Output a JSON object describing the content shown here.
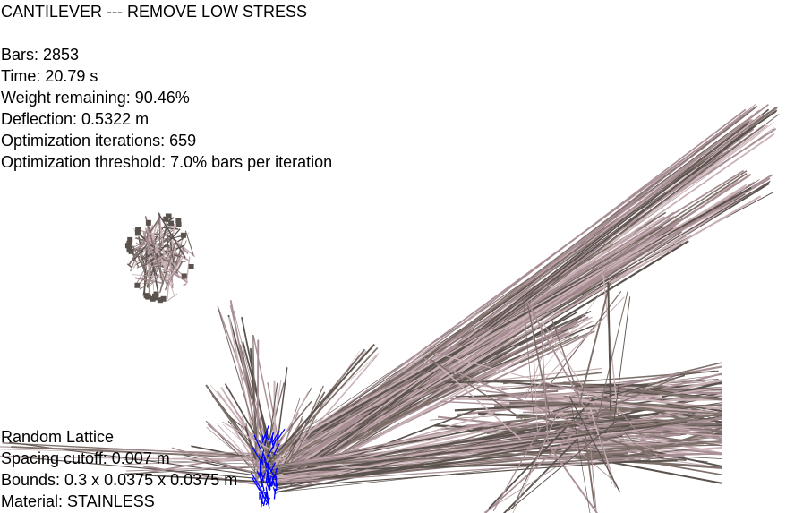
{
  "title": "CANTILEVER --- REMOVE LOW STRESS",
  "stats": {
    "bars": "Bars: 2853",
    "time": "Time: 20.79 s",
    "weight": "Weight remaining: 90.46%",
    "deflection": "Deflection: 0.5322 m",
    "iterations": "Optimization iterations: 659",
    "threshold": "Optimization threshold: 7.0% bars per iteration"
  },
  "lattice": {
    "type": "Random Lattice",
    "spacing": "Spacing cutoff: 0.007 m",
    "bounds": "Bounds: 0.3 x 0.0375 x 0.0375 m",
    "material": "Material: STAINLESS"
  },
  "colors": {
    "bar_dark": "#5a524c",
    "bar_mid": "#7d6f69",
    "bar_light": "#c9b1b6",
    "bar_pink": "#a88f95",
    "support": "#0000ff",
    "text": "#000000",
    "background": "#ffffff"
  }
}
